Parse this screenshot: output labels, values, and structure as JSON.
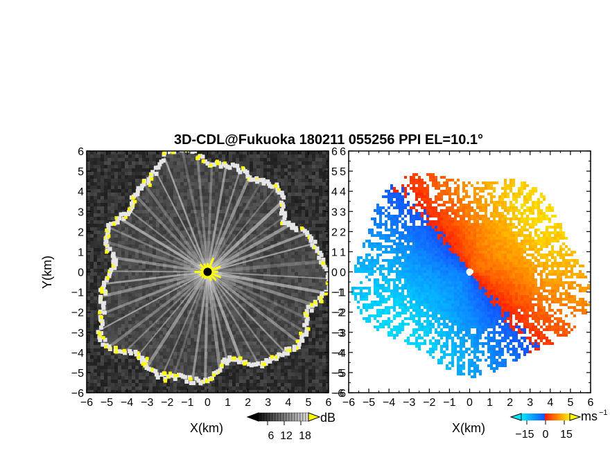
{
  "chart_data": [
    {
      "type": "heatmap",
      "title": "3D-CDL@Fukuoka 180211 055256 PPI EL=10.1°",
      "panel": "reflectivity",
      "xlabel": "X(km)",
      "ylabel": "Y(km)",
      "xlim": [
        -6,
        6
      ],
      "ylim": [
        -6,
        6
      ],
      "xticks": [
        -6,
        -5,
        -4,
        -3,
        -2,
        -1,
        0,
        1,
        2,
        3,
        4,
        5,
        6
      ],
      "yticks": [
        -6,
        -5,
        -4,
        -3,
        -2,
        -1,
        0,
        1,
        2,
        3,
        4,
        5,
        6
      ],
      "grid": false,
      "colorbar": {
        "unit": "dB",
        "ticks": [
          6,
          12,
          18
        ],
        "range": [
          0,
          20
        ],
        "colors": [
          "#000000",
          "#ffffff",
          "#ffff00"
        ]
      }
    },
    {
      "type": "heatmap",
      "panel": "doppler-velocity",
      "xlabel": "X(km)",
      "ylabel": "",
      "xlim": [
        -6,
        6
      ],
      "ylim": [
        -6,
        6
      ],
      "xticks": [
        -6,
        -5,
        -4,
        -3,
        -2,
        -1,
        0,
        1,
        2,
        3,
        4,
        5,
        6
      ],
      "yticks": [
        -6,
        -5,
        -4,
        -3,
        -2,
        -1,
        0,
        1,
        2,
        3,
        4,
        5,
        6
      ],
      "grid": false,
      "colorbar": {
        "unit": "ms",
        "unit_exponent": "−1",
        "ticks": [
          -15,
          0,
          15
        ],
        "range": [
          -20,
          20
        ],
        "colors": [
          "#00e5ff",
          "#1e5dff",
          "#ff2000",
          "#ffff00"
        ]
      }
    }
  ],
  "labels": {
    "title": "3D-CDL@Fukuoka 180211 055256 PPI EL=10.1°",
    "left_xlabel": "X(km)",
    "right_xlabel": "X(km)",
    "ylabel": "Y(km)",
    "cb1_unit": "dB",
    "cb1_t1": "6",
    "cb1_t2": "12",
    "cb1_t3": "18",
    "cb2_unit": "ms",
    "cb2_sup": "−1",
    "cb2_t1": "−15",
    "cb2_t2": "0",
    "cb2_t3": "15"
  }
}
